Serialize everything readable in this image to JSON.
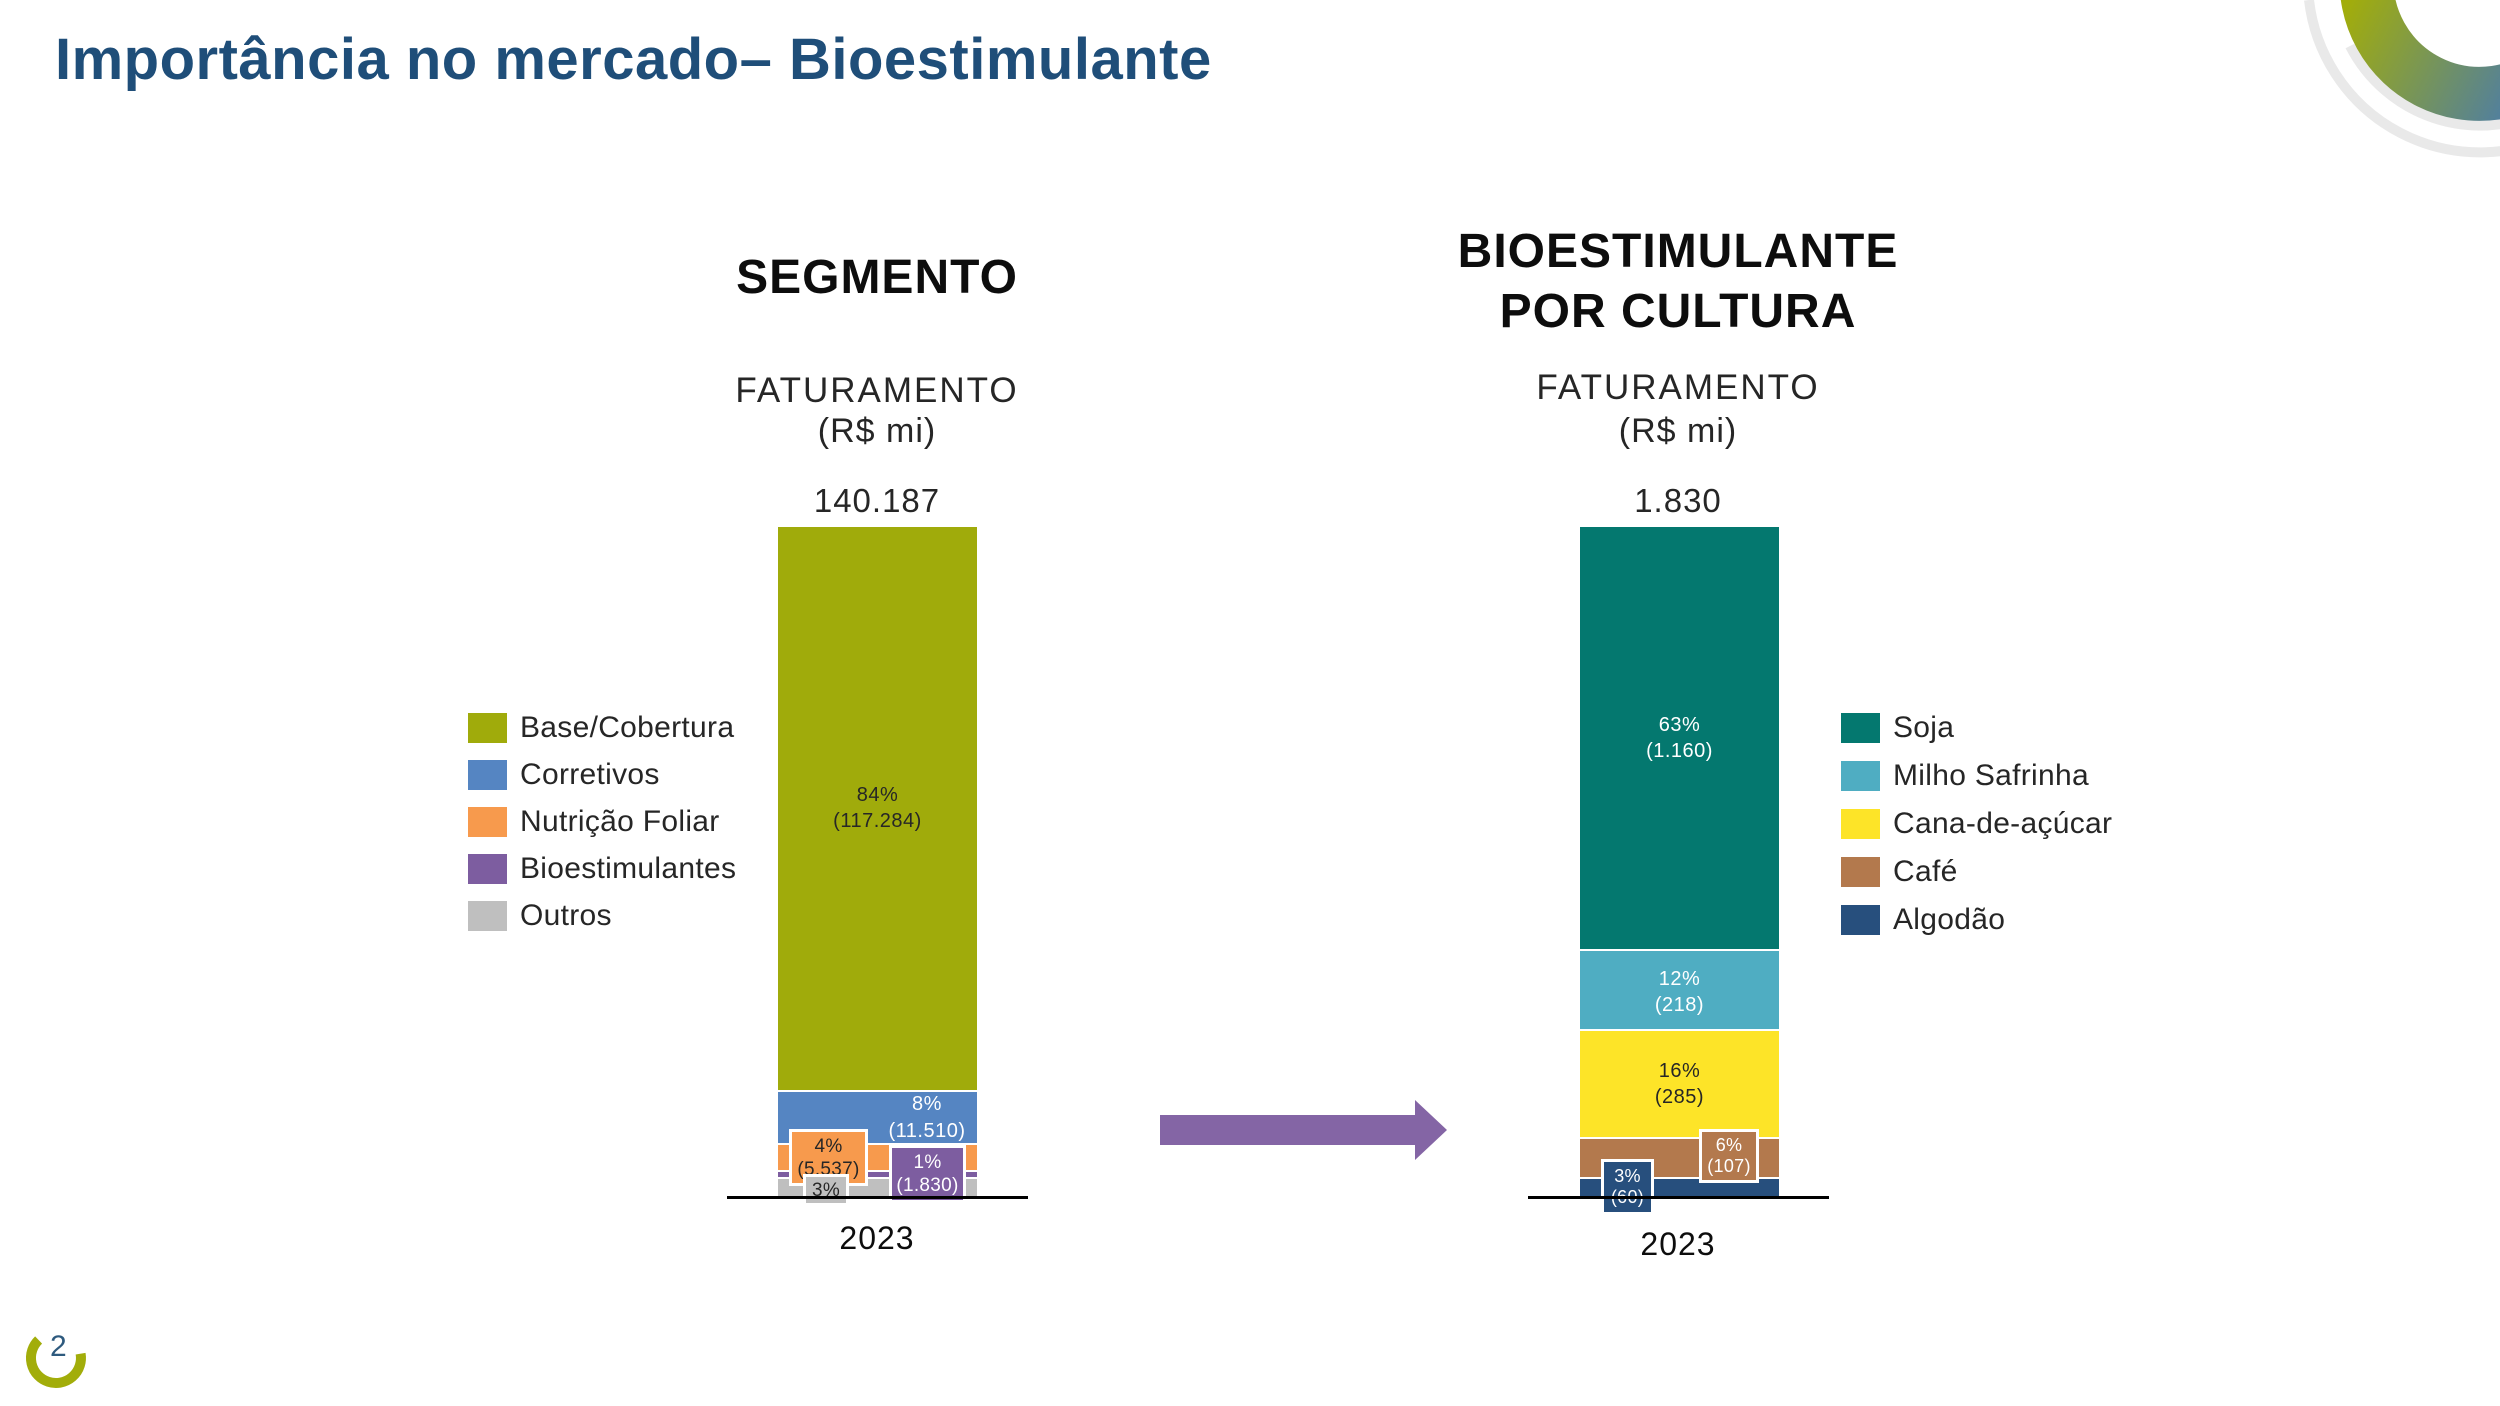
{
  "slide": {
    "title": "Importância no mercado– Bioestimulante",
    "title_color": "#1F4E79",
    "page_number": "2",
    "page_number_color": "#2E5A7E",
    "arrow_color": "#8465A5",
    "logo": {
      "green": "#A2AD0A",
      "blue": "#4679B2",
      "gray": "#E9E9E9"
    }
  },
  "chart_data": [
    {
      "type": "bar",
      "stacked": true,
      "title": "SEGMENTO",
      "subtitle": "FATURAMENTO",
      "unit_label": "(R$ mi)",
      "total_label": "140.187",
      "x_categories": [
        "2023"
      ],
      "legend_position": "left",
      "ylim": [
        0,
        100
      ],
      "series": [
        {
          "name": "Base/Cobertura",
          "color": "#A0AB0B",
          "pct": 84,
          "pct_label": "84%",
          "value_label": "(117.284)"
        },
        {
          "name": "Corretivos",
          "color": "#5585C2",
          "pct": 8,
          "pct_label": "8%",
          "value_label": "(11.510)"
        },
        {
          "name": "Nutrição Foliar",
          "color": "#F79A4D",
          "pct": 4,
          "pct_label": "4%",
          "value_label": "(5.537)"
        },
        {
          "name": "Bioestimulantes",
          "color": "#7D5DA0",
          "pct": 1,
          "pct_label": "1%",
          "value_label": "(1.830)"
        },
        {
          "name": "Outros",
          "color": "#BFBFBF",
          "pct": 3,
          "pct_label": "3%",
          "value_label": ""
        }
      ]
    },
    {
      "type": "bar",
      "stacked": true,
      "title": "BIOESTIMULANTE POR CULTURA",
      "subtitle": "FATURAMENTO",
      "unit_label": "(R$ mi)",
      "total_label": "1.830",
      "x_categories": [
        "2023"
      ],
      "legend_position": "right",
      "ylim": [
        0,
        100
      ],
      "series": [
        {
          "name": "Soja",
          "color": "#04786F",
          "pct": 63,
          "pct_label": "63%",
          "value_label": "(1.160)"
        },
        {
          "name": "Milho Safrinha",
          "color": "#4FADC2",
          "pct": 12,
          "pct_label": "12%",
          "value_label": "(218)"
        },
        {
          "name": "Cana-de-açúcar",
          "color": "#FDE428",
          "pct": 16,
          "pct_label": "16%",
          "value_label": "(285)"
        },
        {
          "name": "Café",
          "color": "#B3794D",
          "pct": 6,
          "pct_label": "6%",
          "value_label": "(107)"
        },
        {
          "name": "Algodão",
          "color": "#274F7D",
          "pct": 3,
          "pct_label": "3%",
          "value_label": "(60)"
        }
      ]
    }
  ]
}
